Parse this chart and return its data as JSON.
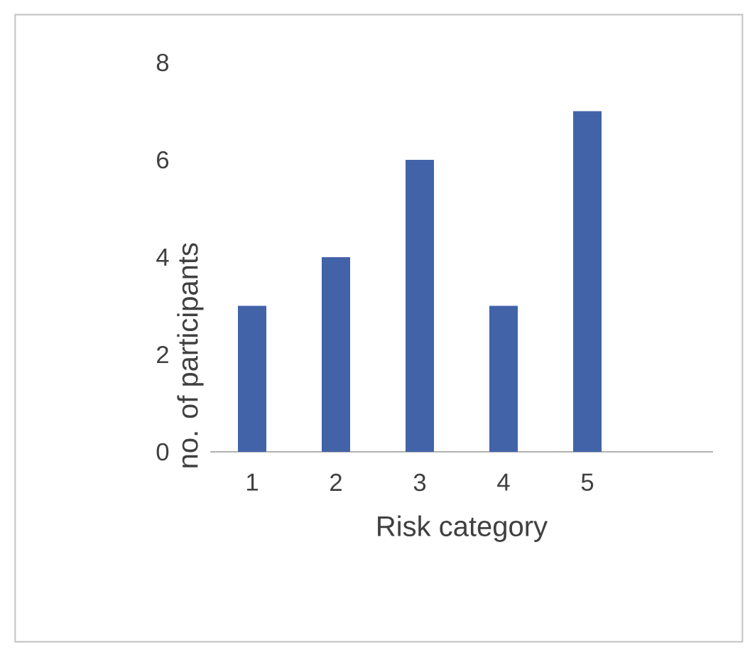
{
  "chart_data": {
    "type": "bar",
    "xlabel": "Risk category",
    "ylabel": "no. of participants",
    "categories": [
      "1",
      "2",
      "3",
      "4",
      "5",
      null
    ],
    "values": [
      3,
      4,
      6,
      3,
      7,
      null
    ],
    "color": "#4263a8",
    "ylim": [
      0,
      8
    ],
    "yticks": [
      0,
      2,
      4,
      6,
      8
    ]
  }
}
